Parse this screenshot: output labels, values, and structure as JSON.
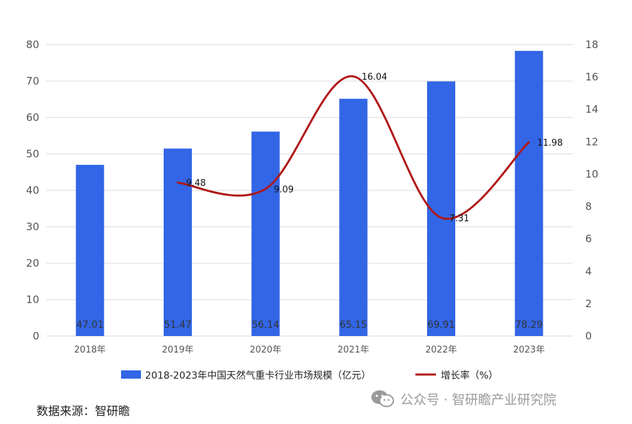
{
  "chart_data": {
    "type": "bar",
    "categories": [
      "2018年",
      "2019年",
      "2020年",
      "2021年",
      "2022年",
      "2023年"
    ],
    "series": [
      {
        "name": "2018-2023年中国天然气重卡行业市场规模（亿元）",
        "type": "bar",
        "axis": "left",
        "values": [
          47.01,
          51.47,
          56.14,
          65.15,
          69.91,
          78.29
        ],
        "labels": [
          "47.01",
          "51.47",
          "56.14",
          "65.15",
          "69.91",
          "78.29"
        ]
      },
      {
        "name": "增长率（%）",
        "type": "line",
        "axis": "right",
        "values": [
          null,
          9.48,
          9.09,
          16.04,
          7.31,
          11.98
        ],
        "labels": [
          "",
          "9.48",
          "9.09",
          "16.04",
          "7.31",
          "11.98"
        ]
      }
    ],
    "y_left": {
      "lim": [
        0,
        80
      ],
      "ticks": [
        "0",
        "10",
        "20",
        "30",
        "40",
        "50",
        "60",
        "70",
        "80"
      ]
    },
    "y_right": {
      "lim": [
        0,
        18
      ],
      "ticks": [
        "0",
        "2",
        "4",
        "6",
        "8",
        "10",
        "12",
        "14",
        "16",
        "18"
      ]
    },
    "grid": true,
    "legend": "bottom",
    "colors": {
      "bar": "#3366e6",
      "line": "#b01818",
      "grid": "#d9d9d9"
    }
  },
  "source_text": "数据来源：智研瞻",
  "watermark": {
    "icon": "wechat-icon",
    "text": "公众号 · 智研瞻产业研究院"
  }
}
